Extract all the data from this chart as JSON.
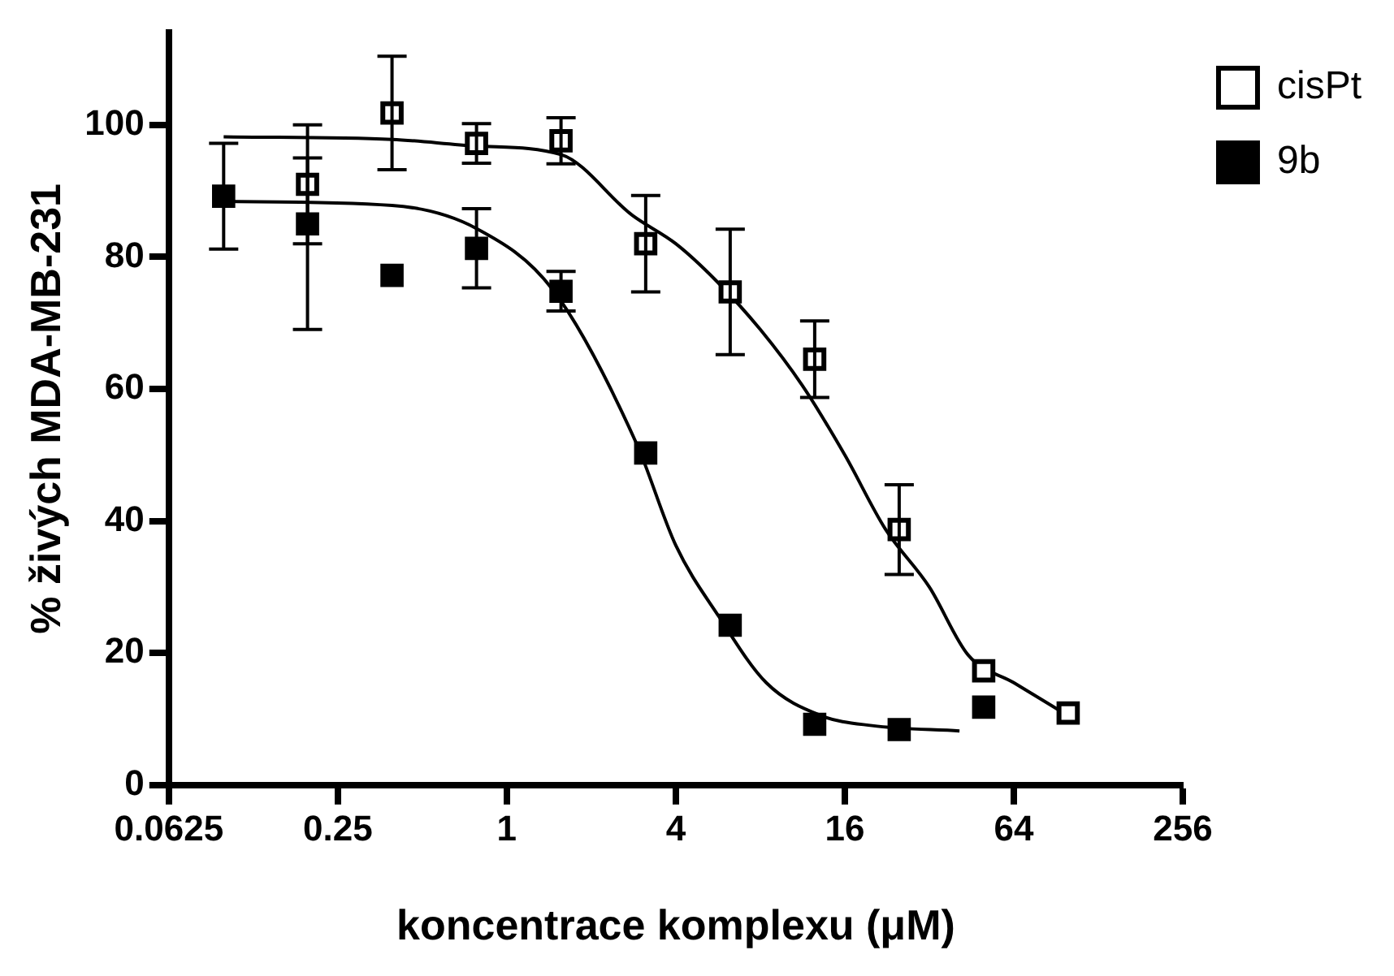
{
  "chart_data": {
    "type": "scatter",
    "xlabel": "koncentrace komplexu (μM)",
    "ylabel": "% živých MDA-MB-231",
    "log": "x",
    "xlim": [
      0.0625,
      256
    ],
    "xticks": [
      0.0625,
      0.25,
      1,
      4,
      16,
      64,
      256
    ],
    "ylim": [
      0,
      114
    ],
    "yticks": [
      0,
      20,
      40,
      60,
      80,
      100
    ],
    "grid": false,
    "legend": "top right",
    "marker": "square",
    "series": [
      {
        "name": "cisPt",
        "color": "#000000",
        "x": [
          0.195,
          0.39,
          0.78,
          1.56,
          3.125,
          6.25,
          12.5,
          25,
          50,
          100
        ],
        "values": [
          91,
          101.8,
          97.2,
          97.6,
          82,
          74.7,
          64.5,
          38.7,
          17.3,
          10.9
        ],
        "errors": [
          9,
          8.6,
          3,
          3.5,
          7.3,
          9.5,
          5.8,
          6.8,
          null,
          null
        ]
      },
      {
        "name": "9b",
        "color": "#000000",
        "x": [
          0.098,
          0.195,
          0.39,
          0.78,
          1.56,
          3.125,
          6.25,
          12.5,
          25,
          50
        ],
        "values": [
          89.2,
          85,
          77.2,
          81.3,
          74.8,
          50.3,
          24.2,
          9.2,
          8.4,
          11.8
        ],
        "errors": [
          8,
          [
            69,
            95
          ],
          null,
          6,
          3,
          null,
          null,
          null,
          null,
          null
        ]
      },
      {
        "type": "line",
        "color": "#000000",
        "marker": "none",
        "x": [
          0.098,
          0.39,
          0.78,
          1.56,
          2.8,
          4,
          5.6,
          8,
          11.3,
          16,
          22.3,
          32,
          44,
          64,
          100
        ],
        "values": [
          98.2,
          97.8,
          96.8,
          95.5,
          86.3,
          82,
          76.3,
          69,
          60.5,
          50,
          38.8,
          30,
          19.7,
          15.5,
          10.5
        ]
      },
      {
        "type": "line",
        "color": "#000000",
        "marker": "none",
        "x": [
          0.098,
          0.39,
          0.78,
          1.46,
          2.9,
          4,
          5.7,
          8.4,
          13.2,
          20,
          41
        ],
        "values": [
          88.4,
          87.8,
          84.3,
          75,
          51.7,
          36.3,
          25.5,
          15.5,
          10.5,
          9,
          8.2
        ]
      }
    ]
  }
}
